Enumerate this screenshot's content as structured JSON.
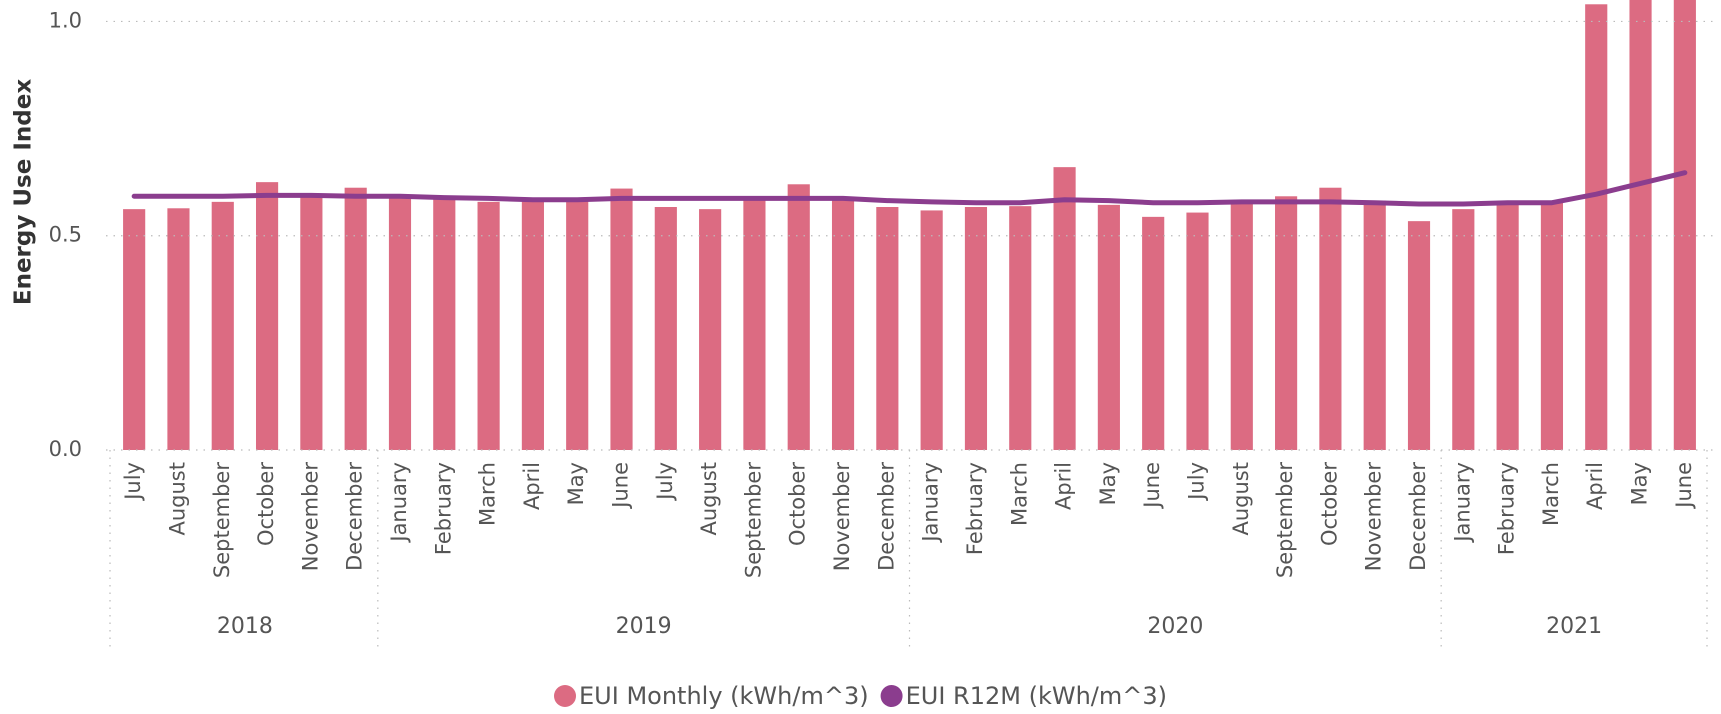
{
  "chart_data": {
    "type": "bar",
    "y_label": "Energy Use Index",
    "categories": [
      "July",
      "August",
      "September",
      "October",
      "November",
      "December",
      "January",
      "February",
      "March",
      "April",
      "May",
      "June",
      "July",
      "August",
      "September",
      "October",
      "November",
      "December",
      "January",
      "February",
      "March",
      "April",
      "May",
      "June",
      "July",
      "August",
      "September",
      "October",
      "November",
      "December",
      "January",
      "February",
      "March",
      "April",
      "May",
      "June"
    ],
    "category_years": [
      "2018",
      "2018",
      "2018",
      "2018",
      "2018",
      "2018",
      "2019",
      "2019",
      "2019",
      "2019",
      "2019",
      "2019",
      "2019",
      "2019",
      "2019",
      "2019",
      "2019",
      "2019",
      "2020",
      "2020",
      "2020",
      "2020",
      "2020",
      "2020",
      "2020",
      "2020",
      "2020",
      "2020",
      "2020",
      "2020",
      "2021",
      "2021",
      "2021",
      "2021",
      "2021",
      "2021"
    ],
    "series": [
      {
        "name": "EUI Monthly (kWh/m^3)",
        "type": "bar",
        "color": "#dc6b82",
        "values": [
          0.562,
          0.564,
          0.579,
          0.625,
          0.594,
          0.612,
          0.592,
          0.587,
          0.579,
          0.587,
          0.584,
          0.61,
          0.567,
          0.562,
          0.587,
          0.62,
          0.589,
          0.567,
          0.559,
          0.567,
          0.569,
          0.66,
          0.572,
          0.544,
          0.554,
          0.582,
          0.592,
          0.612,
          0.582,
          0.534,
          0.562,
          0.579,
          0.579,
          1.04,
          1.12,
          1.12
        ]
      },
      {
        "name": "EUI R12M (kWh/m^3)",
        "type": "line",
        "color": "#8b3d8e",
        "values": [
          0.592,
          0.592,
          0.592,
          0.594,
          0.594,
          0.592,
          0.592,
          0.589,
          0.587,
          0.584,
          0.584,
          0.587,
          0.587,
          0.587,
          0.587,
          0.587,
          0.587,
          0.582,
          0.579,
          0.577,
          0.577,
          0.584,
          0.582,
          0.577,
          0.577,
          0.579,
          0.579,
          0.579,
          0.577,
          0.574,
          0.574,
          0.577,
          0.577,
          0.597,
          0.622,
          0.647
        ]
      }
    ],
    "ylim": [
      0,
      1.05
    ],
    "yticks": [
      {
        "value": 0,
        "label": "0.0"
      },
      {
        "value": 0.5,
        "label": "0.5"
      },
      {
        "value": 1,
        "label": "1.0"
      }
    ],
    "grid": true,
    "legend": "bottom"
  }
}
